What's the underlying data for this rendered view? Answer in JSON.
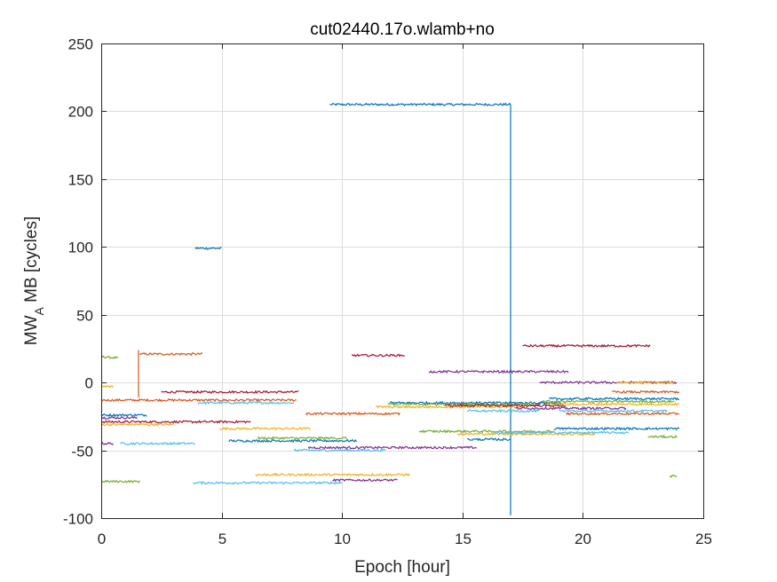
{
  "chart_data": {
    "type": "line",
    "title": "cut02440.17o.wlamb+no",
    "xlabel": "Epoch [hour]",
    "ylabel_main": "MW",
    "ylabel_sub": "A",
    "ylabel_rest": " MB [cycles]",
    "xlim": [
      0,
      25
    ],
    "ylim": [
      -100,
      250
    ],
    "xticks": [
      0,
      5,
      10,
      15,
      20,
      25
    ],
    "yticks": [
      -100,
      -50,
      0,
      50,
      100,
      150,
      200,
      250
    ],
    "grid": true,
    "colors": [
      "#0072BD",
      "#D95319",
      "#EDB120",
      "#7E2F8E",
      "#77AC30",
      "#4DBEEE",
      "#A2142F"
    ],
    "series": [
      {
        "color": "#0072BD",
        "x": [
          9.5,
          17.0
        ],
        "y": [
          205,
          205
        ]
      },
      {
        "color": "#0072BD",
        "x": [
          17.0,
          17.0
        ],
        "y": [
          205,
          -98
        ]
      },
      {
        "color": "#0072BD",
        "x": [
          3.9,
          5.0
        ],
        "y": [
          99,
          99
        ]
      },
      {
        "color": "#77AC30",
        "x": [
          0.0,
          0.7
        ],
        "y": [
          19,
          18
        ]
      },
      {
        "color": "#EDB120",
        "x": [
          0.0,
          0.5
        ],
        "y": [
          -3,
          -3
        ]
      },
      {
        "color": "#D95319",
        "x": [
          1.6,
          4.2
        ],
        "y": [
          21,
          21
        ]
      },
      {
        "color": "#D95319",
        "x": [
          1.55,
          1.55
        ],
        "y": [
          -11,
          24
        ]
      },
      {
        "color": "#A2142F",
        "x": [
          2.5,
          8.2
        ],
        "y": [
          -7,
          -7
        ]
      },
      {
        "color": "#D95319",
        "x": [
          0.0,
          8.1
        ],
        "y": [
          -13,
          -13
        ]
      },
      {
        "color": "#4DBEEE",
        "x": [
          4.0,
          8.0
        ],
        "y": [
          -15,
          -15
        ]
      },
      {
        "color": "#0072BD",
        "x": [
          0.0,
          1.9
        ],
        "y": [
          -24,
          -24
        ]
      },
      {
        "color": "#7E2F8E",
        "x": [
          0.0,
          1.5
        ],
        "y": [
          -26,
          -26
        ]
      },
      {
        "color": "#A2142F",
        "x": [
          0.0,
          6.2
        ],
        "y": [
          -29,
          -29
        ]
      },
      {
        "color": "#EDB120",
        "x": [
          0.0,
          3.0
        ],
        "y": [
          -31,
          -31
        ]
      },
      {
        "color": "#EDB120",
        "x": [
          4.9,
          8.7
        ],
        "y": [
          -34,
          -34
        ]
      },
      {
        "color": "#7E2F8E",
        "x": [
          0.0,
          0.5
        ],
        "y": [
          -45,
          -45
        ]
      },
      {
        "color": "#4DBEEE",
        "x": [
          0.8,
          3.9
        ],
        "y": [
          -45,
          -45
        ]
      },
      {
        "color": "#0072BD",
        "x": [
          5.3,
          10.6
        ],
        "y": [
          -43,
          -43
        ]
      },
      {
        "color": "#77AC30",
        "x": [
          6.5,
          10.2
        ],
        "y": [
          -41,
          -41
        ]
      },
      {
        "color": "#4DBEEE",
        "x": [
          8.0,
          11.8
        ],
        "y": [
          -50,
          -50
        ]
      },
      {
        "color": "#7E2F8E",
        "x": [
          8.6,
          15.6
        ],
        "y": [
          -48,
          -48
        ]
      },
      {
        "color": "#77AC30",
        "x": [
          0.0,
          1.6
        ],
        "y": [
          -73,
          -73
        ]
      },
      {
        "color": "#4DBEEE",
        "x": [
          3.8,
          10.0
        ],
        "y": [
          -74,
          -74
        ]
      },
      {
        "color": "#EDB120",
        "x": [
          6.4,
          12.8
        ],
        "y": [
          -68,
          -68
        ]
      },
      {
        "color": "#7E2F8E",
        "x": [
          9.6,
          12.3
        ],
        "y": [
          -72,
          -72
        ]
      },
      {
        "color": "#A2142F",
        "x": [
          10.4,
          12.6
        ],
        "y": [
          20,
          20
        ]
      },
      {
        "color": "#D95319",
        "x": [
          8.5,
          12.4
        ],
        "y": [
          -23,
          -23
        ]
      },
      {
        "color": "#7E2F8E",
        "x": [
          13.6,
          19.4
        ],
        "y": [
          8,
          8
        ]
      },
      {
        "color": "#A2142F",
        "x": [
          17.5,
          22.8
        ],
        "y": [
          27,
          27
        ]
      },
      {
        "color": "#7E2F8E",
        "x": [
          18.2,
          23.9
        ],
        "y": [
          0,
          0
        ]
      },
      {
        "color": "#EDB120",
        "x": [
          21.4,
          23.8
        ],
        "y": [
          0,
          0
        ]
      },
      {
        "color": "#D95319",
        "x": [
          21.2,
          24.0
        ],
        "y": [
          -7,
          -7
        ]
      },
      {
        "color": "#0072BD",
        "x": [
          12.0,
          19.1
        ],
        "y": [
          -15,
          -15
        ]
      },
      {
        "color": "#77AC30",
        "x": [
          11.9,
          18.2
        ],
        "y": [
          -16,
          -16
        ]
      },
      {
        "color": "#EDB120",
        "x": [
          11.4,
          17.5
        ],
        "y": [
          -18,
          -18
        ]
      },
      {
        "color": "#A2142F",
        "x": [
          14.3,
          19.3
        ],
        "y": [
          -17,
          -17
        ]
      },
      {
        "color": "#4DBEEE",
        "x": [
          15.2,
          18.2
        ],
        "y": [
          -21,
          -21
        ]
      },
      {
        "color": "#0072BD",
        "x": [
          18.6,
          24.0
        ],
        "y": [
          -12,
          -12
        ]
      },
      {
        "color": "#77AC30",
        "x": [
          18.3,
          23.8
        ],
        "y": [
          -14,
          -14
        ]
      },
      {
        "color": "#EDB120",
        "x": [
          18.6,
          24.0
        ],
        "y": [
          -16,
          -16
        ]
      },
      {
        "color": "#7E2F8E",
        "x": [
          17.2,
          21.8
        ],
        "y": [
          -19,
          -19
        ]
      },
      {
        "color": "#4DBEEE",
        "x": [
          19.0,
          23.5
        ],
        "y": [
          -21,
          -21
        ]
      },
      {
        "color": "#D95319",
        "x": [
          19.3,
          24.0
        ],
        "y": [
          -23,
          -23
        ]
      },
      {
        "color": "#77AC30",
        "x": [
          13.2,
          18.8
        ],
        "y": [
          -36,
          -36
        ]
      },
      {
        "color": "#EDB120",
        "x": [
          14.8,
          20.5
        ],
        "y": [
          -38,
          -38
        ]
      },
      {
        "color": "#4DBEEE",
        "x": [
          16.3,
          21.9
        ],
        "y": [
          -37,
          -37
        ]
      },
      {
        "color": "#0072BD",
        "x": [
          18.8,
          24.0
        ],
        "y": [
          -34,
          -34
        ]
      },
      {
        "color": "#77AC30",
        "x": [
          22.7,
          23.9
        ],
        "y": [
          -40,
          -40
        ]
      },
      {
        "color": "#0072BD",
        "x": [
          15.2,
          17.0
        ],
        "y": [
          -42,
          -42
        ]
      },
      {
        "color": "#77AC30",
        "x": [
          23.6,
          23.9
        ],
        "y": [
          -69,
          -69
        ]
      }
    ]
  }
}
